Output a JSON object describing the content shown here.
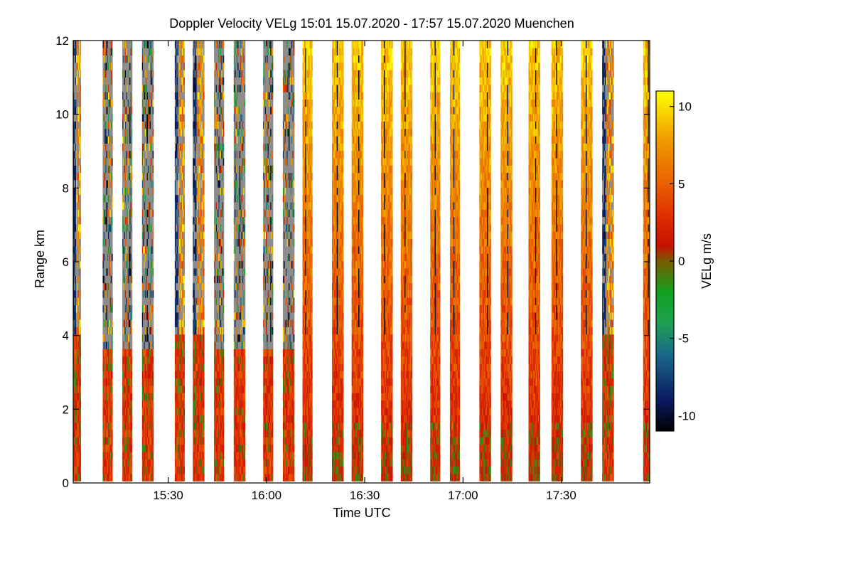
{
  "chart_data": {
    "type": "heatmap",
    "title": "Doppler Velocity VELg   15:01 15.07.2020 - 17:57 15.07.2020 Muenchen",
    "xlabel": "Time UTC",
    "ylabel": "Range km",
    "x_start_min": 901,
    "x_end_min": 1077,
    "xlim_minutes_utc": [
      901,
      1077
    ],
    "ylim": [
      0,
      12
    ],
    "x_ticks": [
      {
        "minute": 930,
        "label": "15:30"
      },
      {
        "minute": 960,
        "label": "16:00"
      },
      {
        "minute": 990,
        "label": "16:30"
      },
      {
        "minute": 1020,
        "label": "17:00"
      },
      {
        "minute": 1050,
        "label": "17:30"
      }
    ],
    "y_ticks": [
      0,
      2,
      4,
      6,
      8,
      10,
      12
    ],
    "colorbar": {
      "label": "VELg m/s",
      "range": [
        -11,
        11
      ],
      "ticks": [
        10,
        5,
        0,
        -5,
        -10
      ],
      "stops": [
        {
          "value": -11,
          "color": "#000000"
        },
        {
          "value": -9,
          "color": "#0a1a60"
        },
        {
          "value": -6,
          "color": "#1a6a8a"
        },
        {
          "value": -4,
          "color": "#1ea050"
        },
        {
          "value": -2,
          "color": "#12a020"
        },
        {
          "value": 0,
          "color": "#7a5a00"
        },
        {
          "value": 1,
          "color": "#c81000"
        },
        {
          "value": 3,
          "color": "#e03000"
        },
        {
          "value": 5,
          "color": "#e86000"
        },
        {
          "value": 8,
          "color": "#f0a000"
        },
        {
          "value": 11,
          "color": "#ffff00"
        }
      ]
    },
    "missing_color": "#8c8c8c",
    "scan_periods": [
      {
        "start": 901.0,
        "end": 903.3,
        "top_km": 12,
        "regime": "mixed"
      },
      {
        "start": 910.0,
        "end": 913.0,
        "top_km": 12,
        "regime": "gray"
      },
      {
        "start": 916.0,
        "end": 919.0,
        "top_km": 12,
        "regime": "gray"
      },
      {
        "start": 922.0,
        "end": 925.5,
        "top_km": 12,
        "regime": "gray"
      },
      {
        "start": 932.0,
        "end": 935.0,
        "top_km": 12,
        "regime": "mixed"
      },
      {
        "start": 937.5,
        "end": 941.0,
        "top_km": 12,
        "regime": "mixed"
      },
      {
        "start": 944.0,
        "end": 947.0,
        "top_km": 12,
        "regime": "gray"
      },
      {
        "start": 950.0,
        "end": 953.5,
        "top_km": 12,
        "regime": "gray"
      },
      {
        "start": 959.0,
        "end": 962.0,
        "top_km": 12,
        "regime": "gray"
      },
      {
        "start": 965.0,
        "end": 968.5,
        "top_km": 12,
        "regime": "gray"
      },
      {
        "start": 971.0,
        "end": 974.0,
        "top_km": 12,
        "regime": "orange"
      },
      {
        "start": 980.0,
        "end": 983.5,
        "top_km": 12,
        "regime": "orange"
      },
      {
        "start": 986.0,
        "end": 989.5,
        "top_km": 12,
        "regime": "orange"
      },
      {
        "start": 995.0,
        "end": 998.5,
        "top_km": 12,
        "regime": "orange"
      },
      {
        "start": 1001.0,
        "end": 1004.5,
        "top_km": 12,
        "regime": "orange"
      },
      {
        "start": 1010.0,
        "end": 1013.0,
        "top_km": 12,
        "regime": "orange"
      },
      {
        "start": 1016.0,
        "end": 1019.0,
        "top_km": 12,
        "regime": "orange"
      },
      {
        "start": 1025.0,
        "end": 1028.5,
        "top_km": 12,
        "regime": "orange"
      },
      {
        "start": 1031.5,
        "end": 1035.0,
        "top_km": 12,
        "regime": "orange"
      },
      {
        "start": 1040.0,
        "end": 1043.5,
        "top_km": 12,
        "regime": "orange"
      },
      {
        "start": 1047.0,
        "end": 1050.5,
        "top_km": 12,
        "regime": "orange"
      },
      {
        "start": 1056.0,
        "end": 1059.5,
        "top_km": 12,
        "regime": "orange"
      },
      {
        "start": 1062.5,
        "end": 1066.0,
        "top_km": 12,
        "regime": "mixed"
      },
      {
        "start": 1075.0,
        "end": 1077.0,
        "top_km": 12,
        "regime": "orange"
      }
    ]
  }
}
